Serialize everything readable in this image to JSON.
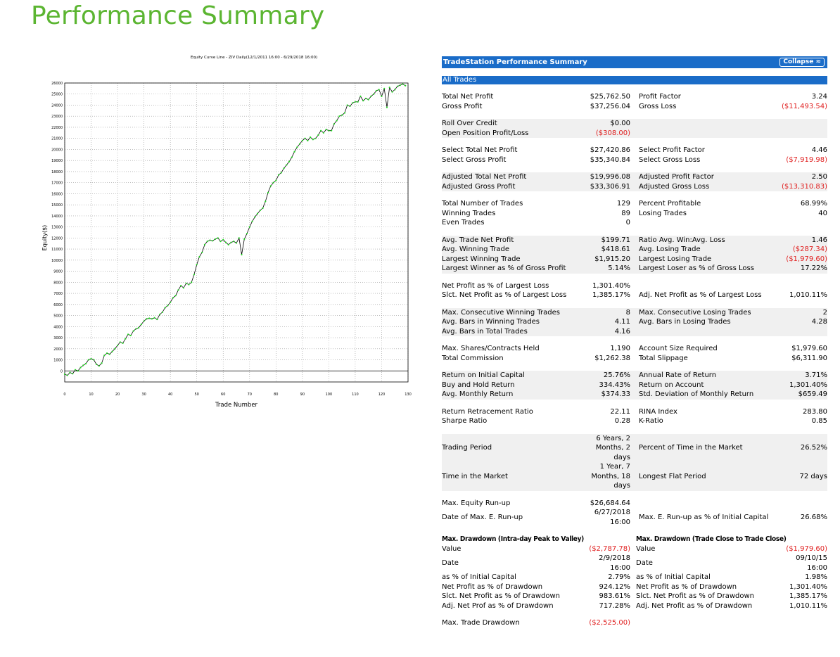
{
  "page_title": "Performance Summary",
  "chart_data": {
    "type": "line",
    "title": "Equity Curve Line - ZIV Daily(12/1/2011 16:00 - 6/29/2018 16:00)",
    "xlabel": "Trade Number",
    "ylabel": "Equity($)",
    "xlim": [
      0,
      130
    ],
    "ylim": [
      -1000,
      26000
    ],
    "xticks": [
      "0",
      "10",
      "20",
      "30",
      "40",
      "50",
      "60",
      "70",
      "80",
      "90",
      "100",
      "110",
      "120",
      "130"
    ],
    "yticks": [
      "0",
      "1000",
      "2000",
      "3000",
      "4000",
      "5000",
      "6000",
      "7000",
      "8000",
      "9000",
      "10000",
      "11000",
      "12000",
      "13000",
      "14000",
      "15000",
      "16000",
      "17000",
      "18000",
      "19000",
      "20000",
      "21000",
      "22000",
      "23000",
      "24000",
      "25000",
      "26000"
    ],
    "grid": true,
    "line_color": "#000000",
    "marker_color": "#22d422",
    "series": [
      {
        "x": [
          0,
          1,
          2,
          3,
          4,
          5,
          6,
          7,
          8,
          9,
          10,
          11,
          12,
          13,
          14,
          15,
          16,
          17,
          18,
          19,
          20,
          21,
          22,
          23,
          24,
          25,
          26,
          27,
          28,
          29,
          30,
          31,
          32,
          33,
          34,
          35,
          36,
          37,
          38,
          39,
          40,
          41,
          42,
          43,
          44,
          45,
          46,
          47,
          48,
          49,
          50,
          51,
          52,
          53,
          54,
          55,
          56,
          57,
          58,
          59,
          60,
          61,
          62,
          63,
          64,
          65,
          66,
          67,
          68,
          69,
          70,
          71,
          72,
          73,
          74,
          75,
          76,
          77,
          78,
          79,
          80,
          81,
          82,
          83,
          84,
          85,
          86,
          87,
          88,
          89,
          90,
          91,
          92,
          93,
          94,
          95,
          96,
          97,
          98,
          99,
          100,
          101,
          102,
          103,
          104,
          105,
          106,
          107,
          108,
          109,
          110,
          111,
          112,
          113,
          114,
          115,
          116,
          117,
          118,
          119,
          120,
          121,
          122,
          123,
          124,
          125,
          126,
          127,
          128,
          129
        ],
        "y": [
          -300,
          -400,
          -150,
          -250,
          100,
          0,
          300,
          500,
          650,
          1000,
          1100,
          1000,
          600,
          450,
          700,
          1400,
          1600,
          1500,
          1750,
          2000,
          2300,
          2600,
          2500,
          2900,
          3300,
          3200,
          3600,
          3800,
          3900,
          4200,
          4500,
          4700,
          4750,
          4700,
          4800,
          4650,
          5100,
          5300,
          5700,
          5900,
          6200,
          6600,
          6800,
          7300,
          7700,
          7500,
          7900,
          7800,
          8000,
          8700,
          9600,
          10300,
          10700,
          11400,
          11700,
          11800,
          11750,
          11900,
          12000,
          11700,
          11850,
          11600,
          11400,
          11600,
          11700,
          11550,
          12000,
          10500,
          11900,
          12400,
          13000,
          13500,
          13900,
          14200,
          14500,
          14700,
          15300,
          16100,
          16700,
          17000,
          17200,
          17700,
          17900,
          18300,
          18600,
          18900,
          19300,
          19800,
          20200,
          20500,
          20800,
          21000,
          20800,
          21100,
          20900,
          21000,
          21300,
          21700,
          21500,
          21800,
          21700,
          21700,
          22300,
          22600,
          23000,
          23100,
          23300,
          24000,
          23900,
          24200,
          24300,
          24300,
          24800,
          24400,
          24600,
          24500,
          24800,
          25000,
          25300,
          25400,
          24800,
          25500,
          23800,
          25600,
          25200,
          25400,
          25700,
          25800,
          25900,
          25760
        ]
      }
    ]
  },
  "report": {
    "title": "TradeStation Performance Summary",
    "collapse_label": "Collapse ≈",
    "section_label": "All Trades",
    "groups": [
      {
        "alt": false,
        "rows": [
          {
            "l1": "Total Net Profit",
            "v1": "$25,762.50",
            "l2": "Profit Factor",
            "v2": "3.24"
          },
          {
            "l1": "Gross Profit",
            "v1": "$37,256.04",
            "l2": "Gross Loss",
            "v2": "($11,493.54)",
            "v2_neg": true
          }
        ]
      },
      {
        "alt": true,
        "rows": [
          {
            "l1": "Roll Over Credit",
            "v1": "$0.00",
            "l2": "",
            "v2": ""
          },
          {
            "l1": "Open Position Profit/Loss",
            "v1": "($308.00)",
            "v1_neg": true,
            "l2": "",
            "v2": ""
          }
        ]
      },
      {
        "alt": false,
        "rows": [
          {
            "l1": "Select Total Net Profit",
            "v1": "$27,420.86",
            "l2": "Select Profit Factor",
            "v2": "4.46"
          },
          {
            "l1": "Select Gross Profit",
            "v1": "$35,340.84",
            "l2": "Select Gross Loss",
            "v2": "($7,919.98)",
            "v2_neg": true
          }
        ]
      },
      {
        "alt": true,
        "rows": [
          {
            "l1": "Adjusted Total Net Profit",
            "v1": "$19,996.08",
            "l2": "Adjusted Profit Factor",
            "v2": "2.50"
          },
          {
            "l1": "Adjusted Gross Profit",
            "v1": "$33,306.91",
            "l2": "Adjusted Gross Loss",
            "v2": "($13,310.83)",
            "v2_neg": true
          }
        ]
      },
      {
        "alt": false,
        "rows": [
          {
            "l1": "Total Number of Trades",
            "v1": "129",
            "l2": "Percent Profitable",
            "v2": "68.99%"
          },
          {
            "l1": "Winning Trades",
            "v1": "89",
            "l2": "Losing Trades",
            "v2": "40"
          },
          {
            "l1": "Even Trades",
            "v1": "0",
            "l2": "",
            "v2": ""
          }
        ]
      },
      {
        "alt": true,
        "rows": [
          {
            "l1": "Avg. Trade Net Profit",
            "v1": "$199.71",
            "l2": "Ratio Avg. Win:Avg. Loss",
            "v2": "1.46"
          },
          {
            "l1": "Avg. Winning Trade",
            "v1": "$418.61",
            "l2": "Avg. Losing Trade",
            "v2": "($287.34)",
            "v2_neg": true
          },
          {
            "l1": "Largest Winning Trade",
            "v1": "$1,915.20",
            "l2": "Largest Losing Trade",
            "v2": "($1,979.60)",
            "v2_neg": true
          },
          {
            "l1": "Largest Winner as % of Gross Profit",
            "v1": "5.14%",
            "l2": "Largest Loser as % of Gross Loss",
            "v2": "17.22%"
          }
        ]
      },
      {
        "alt": false,
        "rows": [
          {
            "l1": "Net Profit as % of Largest Loss",
            "v1": "1,301.40%",
            "l2": "",
            "v2": ""
          },
          {
            "l1": "Slct. Net Profit as % of Largest Loss",
            "v1": "1,385.17%",
            "l2": "Adj. Net Profit as % of Largest Loss",
            "v2": "1,010.11%"
          }
        ]
      },
      {
        "alt": true,
        "rows": [
          {
            "l1": "Max. Consecutive Winning Trades",
            "v1": "8",
            "l2": "Max. Consecutive Losing Trades",
            "v2": "2"
          },
          {
            "l1": "Avg. Bars in Winning Trades",
            "v1": "4.11",
            "l2": "Avg. Bars in Losing Trades",
            "v2": "4.28"
          },
          {
            "l1": "Avg. Bars in Total Trades",
            "v1": "4.16",
            "l2": "",
            "v2": ""
          }
        ]
      },
      {
        "alt": false,
        "rows": [
          {
            "l1": "Max. Shares/Contracts Held",
            "v1": "1,190",
            "l2": "Account Size Required",
            "v2": "$1,979.60"
          },
          {
            "l1": "Total Commission",
            "v1": "$1,262.38",
            "l2": "Total Slippage",
            "v2": "$6,311.90"
          }
        ]
      },
      {
        "alt": true,
        "rows": [
          {
            "l1": "Return on Initial Capital",
            "v1": "25.76%",
            "l2": "Annual Rate of Return",
            "v2": "3.71%"
          },
          {
            "l1": "Buy and Hold Return",
            "v1": "334.43%",
            "l2": "Return on Account",
            "v2": "1,301.40%"
          },
          {
            "l1": "Avg. Monthly Return",
            "v1": "$374.33",
            "l2": "Std. Deviation of Monthly Return",
            "v2": "$659.49"
          }
        ]
      },
      {
        "alt": false,
        "rows": [
          {
            "l1": "Return Retracement Ratio",
            "v1": "22.11",
            "l2": "RINA Index",
            "v2": "283.80"
          },
          {
            "l1": "Sharpe Ratio",
            "v1": "0.28",
            "l2": "K-Ratio",
            "v2": "0.85"
          }
        ]
      },
      {
        "alt": true,
        "rows": [
          {
            "l1": "Trading Period",
            "v1": "6 Years, 2 Months, 2 days",
            "v1_wrap": true,
            "l2": "Percent of Time in the Market",
            "v2": "26.52%"
          },
          {
            "l1": "Time in the Market",
            "v1": "1 Year, 7 Months, 18 days",
            "v1_wrap": true,
            "l2": "Longest Flat Period",
            "v2": "72 days"
          }
        ]
      },
      {
        "alt": false,
        "rows": [
          {
            "l1": "Max. Equity Run-up",
            "v1": "$26,684.64",
            "l2": "",
            "v2": ""
          },
          {
            "l1": "Date of Max. E. Run-up",
            "v1": "6/27/2018 16:00",
            "v1_wrap": true,
            "l2": "Max. E. Run-up as % of Initial Capital",
            "v2": "26.68%"
          }
        ]
      }
    ],
    "drawdown": {
      "left_title": "Max. Drawdown (Intra-day Peak to Valley)",
      "right_title": "Max. Drawdown (Trade Close to Trade Close)",
      "rows": [
        {
          "l1": "Value",
          "v1": "($2,787.78)",
          "v1_neg": true,
          "l2": "Value",
          "v2": "($1,979.60)",
          "v2_neg": true
        },
        {
          "l1": "Date",
          "v1": "2/9/2018 16:00",
          "v1_wrap": true,
          "l2": "Date",
          "v2": "09/10/15 16:00",
          "v2_wrap": true
        },
        {
          "l1": "as % of Initial Capital",
          "v1": "2.79%",
          "l2": "as % of Initial Capital",
          "v2": "1.98%"
        },
        {
          "l1": "Net Profit as % of Drawdown",
          "v1": "924.12%",
          "l2": "Net Profit as % of Drawdown",
          "v2": "1,301.40%"
        },
        {
          "l1": "Slct. Net Profit as % of Drawdown",
          "v1": "983.61%",
          "l2": "Slct. Net Profit as % of Drawdown",
          "v2": "1,385.17%"
        },
        {
          "l1": "Adj. Net Prof as % of Drawdown",
          "v1": "717.28%",
          "l2": "Adj. Net Profit as % of Drawdown",
          "v2": "1,010.11%"
        }
      ]
    },
    "max_trade_drawdown_label": "Max. Trade Drawdown",
    "max_trade_drawdown_value": "($2,525.00)",
    "negative_color": "#e02020",
    "header_color": "#1a6cc8"
  }
}
